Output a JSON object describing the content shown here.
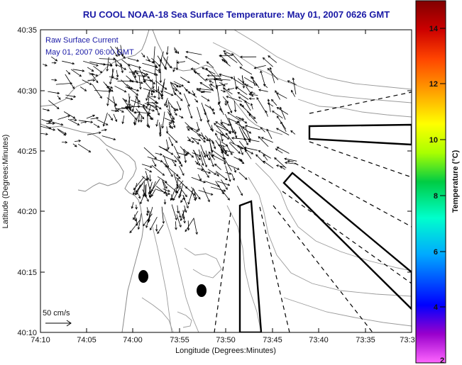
{
  "title": "RU COOL  NOAA-18  Sea Surface Temperature:  May 01, 2007 0626 GMT",
  "annotation": {
    "line1": "Raw Surface Current",
    "line2": "May 01, 2007 06:00 GMT"
  },
  "scale_label": "50 cm/s",
  "x_axis": {
    "label": "Longitude (Degrees:Minutes)",
    "ticks": [
      "74:10",
      "74:05",
      "74:00",
      "73:55",
      "73:50",
      "73:45",
      "73:40",
      "73:35",
      "73:3"
    ]
  },
  "y_axis": {
    "label": "Latitude (Degrees:Minutes)",
    "ticks": [
      "40:35",
      "40:30",
      "40:25",
      "40:20",
      "40:15",
      "40:10"
    ]
  },
  "colorbar": {
    "label": "Temperature (°C)",
    "ticks": [
      "14",
      "12",
      "10",
      "8",
      "6",
      "4",
      "2"
    ],
    "range": [
      2,
      15
    ],
    "colors": [
      "#ff66ff",
      "#9900cc",
      "#0000ff",
      "#00aaff",
      "#00ffcc",
      "#00cc44",
      "#aaff00",
      "#ffff00",
      "#ffaa00",
      "#ff4400",
      "#cc0000",
      "#800000"
    ]
  },
  "colors": {
    "title": "#1a1aa6",
    "annotation": "#1a1aa6",
    "contours": "#999999",
    "frame": "#000000",
    "vectors": "#000000"
  }
}
